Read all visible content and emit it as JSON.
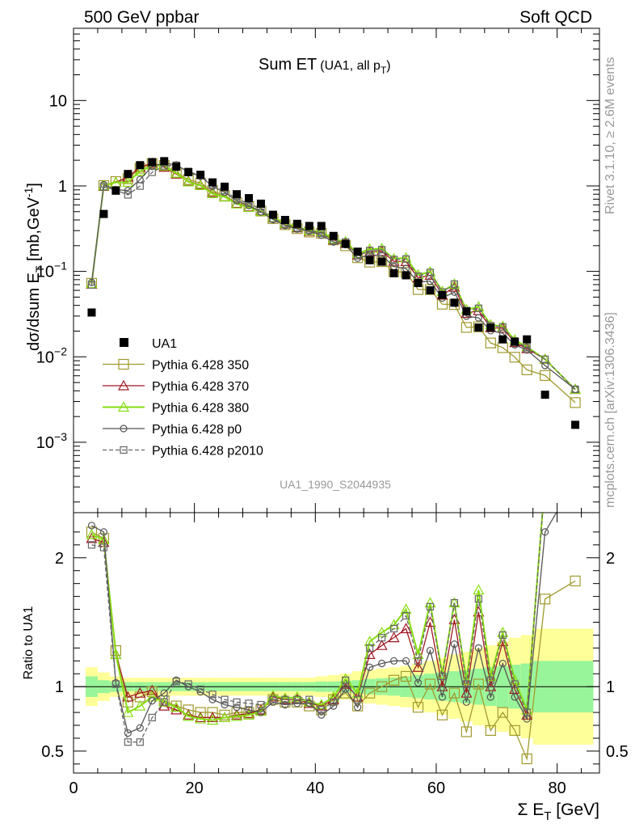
{
  "header": {
    "left": "500 GeV ppbar",
    "right": "Soft QCD",
    "plot_title": "Sum ET",
    "plot_title_sub": "(UA1, all p",
    "plot_title_sub_sub": "T",
    "plot_title_sub_end": ")",
    "side_top": "Rivet 3.1.10, ≥ 2.6M events",
    "side_bottom": "mcplots.cern.ch [arXiv:1306.3436]",
    "analysis_id": "UA1_1990_S2044935"
  },
  "axes": {
    "ylabel_main": "dσ/dsum E",
    "ylabel_main_sub": "T",
    "ylabel_main_units": " [mb,GeV",
    "ylabel_main_units_sup": "-1",
    "ylabel_main_end": "]",
    "ylabel_ratio": "Ratio to UA1",
    "xlabel": "Σ E",
    "xlabel_sub": "T",
    "xlabel_units": " [GeV]"
  },
  "colors": {
    "data": "#000000",
    "p350": "#a09a2e",
    "p370": "#a01822",
    "p380": "#88dd11",
    "p0": "#555555",
    "p2010": "#666666",
    "band_yellow": "#ffff99",
    "band_green": "#99f599"
  },
  "chart_data": {
    "type": "line",
    "x_range": [
      0,
      87
    ],
    "main": {
      "ylog": true,
      "ylim": [
        0.00015,
        70
      ],
      "yticks": [
        {
          "v": 0.001,
          "base": "10",
          "exp": "−3"
        },
        {
          "v": 0.01,
          "base": "10",
          "exp": "−2"
        },
        {
          "v": 0.1,
          "base": "10",
          "exp": "−1"
        },
        {
          "v": 1,
          "label": "1"
        },
        {
          "v": 10,
          "label": "10"
        }
      ]
    },
    "ratio": {
      "ylim": [
        0.33,
        2.35
      ],
      "yticks": [
        0.5,
        1,
        2
      ],
      "yticklabels": [
        "0.5",
        "1",
        "2"
      ]
    },
    "xticks": [
      0,
      20,
      40,
      60,
      80
    ],
    "xticklabels": [
      "0",
      "20",
      "40",
      "60",
      "80"
    ],
    "legend": [
      {
        "key": "data",
        "label": "UA1"
      },
      {
        "key": "p350",
        "label": "Pythia 6.428 350"
      },
      {
        "key": "p370",
        "label": "Pythia 6.428 370"
      },
      {
        "key": "p380",
        "label": "Pythia 6.428 380"
      },
      {
        "key": "p0",
        "label": "Pythia 6.428 p0"
      },
      {
        "key": "p2010",
        "label": "Pythia 6.428 p2010"
      }
    ],
    "data_points": {
      "x": [
        3,
        5,
        7,
        9,
        11,
        13,
        15,
        17,
        19,
        21,
        23,
        25,
        27,
        29,
        31,
        33,
        35,
        37,
        39,
        41,
        43,
        45,
        47,
        49,
        51,
        53,
        55,
        57,
        59,
        61,
        63,
        65,
        67,
        69,
        71,
        73,
        75,
        78,
        83
      ],
      "y": [
        0.033,
        0.47,
        0.88,
        1.38,
        1.75,
        1.9,
        1.95,
        1.68,
        1.45,
        1.35,
        1.1,
        0.98,
        0.8,
        0.72,
        0.62,
        0.46,
        0.4,
        0.36,
        0.34,
        0.34,
        0.26,
        0.21,
        0.17,
        0.135,
        0.13,
        0.095,
        0.09,
        0.073,
        0.06,
        0.053,
        0.043,
        0.034,
        0.022,
        0.022,
        0.016,
        0.015,
        0.016,
        0.0036,
        0.0016
      ]
    },
    "mc_x": [
      3,
      5,
      7,
      9,
      11,
      13,
      15,
      17,
      19,
      21,
      23,
      25,
      27,
      29,
      31,
      33,
      35,
      37,
      39,
      41,
      43,
      45,
      47,
      49,
      51,
      53,
      55,
      57,
      59,
      61,
      63,
      65,
      67,
      69,
      71,
      73,
      75,
      78,
      83
    ],
    "series": [
      {
        "key": "p350",
        "name": "Pythia 6.428 350",
        "marker": "square-large",
        "dashed": false,
        "ratio": [
          2.2,
          2.15,
          1.28,
          0.88,
          0.92,
          0.96,
          0.89,
          0.85,
          0.82,
          0.8,
          0.8,
          0.78,
          0.8,
          0.8,
          0.82,
          0.9,
          0.88,
          0.88,
          0.85,
          0.82,
          0.9,
          0.95,
          0.85,
          0.95,
          1.0,
          1.05,
          1.08,
          0.84,
          1.02,
          0.78,
          0.95,
          0.65,
          1.02,
          0.66,
          0.8,
          0.66,
          0.44,
          1.68,
          1.82
        ]
      },
      {
        "key": "p370",
        "name": "Pythia 6.428 370",
        "marker": "triangle",
        "dashed": false,
        "ratio": [
          2.15,
          2.12,
          1.25,
          0.92,
          0.95,
          0.97,
          0.85,
          0.82,
          0.78,
          0.76,
          0.76,
          0.76,
          0.78,
          0.79,
          0.82,
          0.92,
          0.9,
          0.9,
          0.87,
          0.85,
          0.9,
          1.02,
          0.92,
          1.25,
          1.32,
          1.38,
          1.45,
          1.15,
          1.5,
          1.0,
          1.52,
          0.95,
          1.58,
          1.0,
          1.35,
          0.98,
          0.78,
          2.6,
          2.6
        ]
      },
      {
        "key": "p380",
        "name": "Pythia 6.428 380",
        "marker": "triangle",
        "dashed": false,
        "ratio": [
          2.18,
          2.14,
          1.25,
          0.8,
          0.85,
          0.92,
          0.88,
          0.84,
          0.77,
          0.75,
          0.74,
          0.76,
          0.77,
          0.78,
          0.81,
          0.93,
          0.91,
          0.92,
          0.88,
          0.86,
          0.92,
          1.06,
          0.95,
          1.35,
          1.42,
          1.48,
          1.6,
          1.25,
          1.65,
          1.1,
          1.65,
          1.05,
          1.75,
          1.08,
          1.42,
          1.05,
          0.82,
          2.6,
          2.6
        ]
      },
      {
        "key": "p0",
        "name": "Pythia 6.428 p0",
        "marker": "circle",
        "dashed": false,
        "ratio": [
          2.25,
          2.2,
          1.03,
          0.64,
          0.68,
          0.89,
          0.95,
          1.05,
          1.0,
          0.96,
          0.9,
          0.86,
          0.84,
          0.82,
          0.8,
          0.88,
          0.86,
          0.87,
          0.87,
          0.78,
          0.85,
          0.98,
          0.84,
          1.15,
          1.18,
          1.2,
          1.2,
          1.03,
          1.28,
          0.92,
          1.33,
          0.88,
          1.3,
          0.92,
          1.18,
          0.92,
          0.75,
          2.2,
          2.6
        ]
      },
      {
        "key": "p2010",
        "name": "Pythia 6.428 p2010",
        "marker": "square",
        "dashed": true,
        "ratio": [
          2.1,
          2.08,
          1.02,
          0.57,
          0.57,
          0.76,
          0.88,
          1.04,
          1.02,
          0.98,
          0.94,
          0.9,
          0.88,
          0.87,
          0.86,
          0.9,
          0.9,
          0.9,
          0.9,
          0.82,
          0.88,
          1.05,
          0.9,
          1.3,
          1.38,
          1.45,
          1.55,
          1.2,
          1.62,
          1.08,
          1.65,
          1.02,
          1.68,
          1.05,
          1.4,
          1.02,
          0.8,
          2.6,
          2.6
        ]
      }
    ],
    "bands": {
      "edges": [
        2,
        4,
        6,
        8,
        10,
        12,
        14,
        16,
        18,
        20,
        22,
        24,
        26,
        28,
        30,
        32,
        34,
        36,
        38,
        40,
        42,
        44,
        46,
        48,
        50,
        52,
        54,
        56,
        58,
        60,
        62,
        64,
        66,
        68,
        70,
        72,
        74,
        76,
        80,
        86
      ],
      "yellow": [
        0.15,
        0.11,
        0.08,
        0.07,
        0.07,
        0.07,
        0.07,
        0.07,
        0.07,
        0.07,
        0.07,
        0.07,
        0.07,
        0.07,
        0.07,
        0.07,
        0.07,
        0.07,
        0.07,
        0.08,
        0.09,
        0.1,
        0.12,
        0.13,
        0.14,
        0.15,
        0.16,
        0.18,
        0.2,
        0.22,
        0.25,
        0.27,
        0.3,
        0.32,
        0.35,
        0.38,
        0.4,
        0.45,
        0.45
      ],
      "green": [
        0.08,
        0.05,
        0.04,
        0.035,
        0.035,
        0.035,
        0.035,
        0.035,
        0.035,
        0.035,
        0.035,
        0.035,
        0.035,
        0.035,
        0.035,
        0.035,
        0.035,
        0.035,
        0.035,
        0.04,
        0.04,
        0.045,
        0.05,
        0.06,
        0.065,
        0.07,
        0.08,
        0.09,
        0.1,
        0.11,
        0.12,
        0.13,
        0.14,
        0.15,
        0.16,
        0.17,
        0.18,
        0.2,
        0.2
      ]
    }
  }
}
